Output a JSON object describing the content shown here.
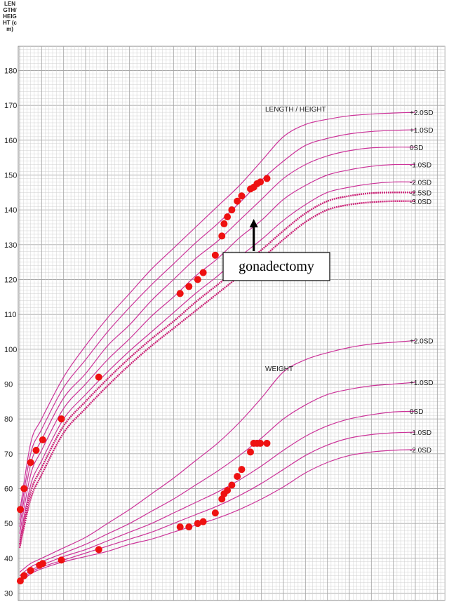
{
  "chart_data": {
    "type": "line",
    "title": "",
    "ylabel": "LENGTH/HEIGHT (cm)",
    "xlabel": "",
    "ylim": [
      30,
      190
    ],
    "yticks": [
      30,
      40,
      50,
      60,
      70,
      80,
      90,
      100,
      110,
      120,
      130,
      140,
      150,
      160,
      170,
      180
    ],
    "x_domain": [
      0,
      19
    ],
    "grid": true,
    "panels": [
      {
        "name": "LENGTH / HEIGHT",
        "series": [
          {
            "name": "+2.0SD",
            "color": "#cc3399",
            "x": [
              0,
              0.5,
              1,
              2,
              3,
              4,
              5,
              6,
              7,
              8,
              9,
              10,
              11,
              12,
              13,
              14,
              15,
              16,
              17,
              18
            ],
            "y": [
              53,
              73,
              80,
              92,
              101,
              109,
              116,
              123,
              129,
              135,
              141,
              147,
              154,
              161,
              164.5,
              166,
              167,
              167.5,
              167.8,
              168
            ]
          },
          {
            "name": "+1.0SD",
            "color": "#cc3399",
            "x": [
              0,
              0.5,
              1,
              2,
              3,
              4,
              5,
              6,
              7,
              8,
              9,
              10,
              11,
              12,
              13,
              14,
              15,
              16,
              17,
              18
            ],
            "y": [
              51,
              70,
              77,
              89,
              97,
              105,
              112,
              118.5,
              124.5,
              130.5,
              136,
              142,
              148.5,
              154,
              158.5,
              160.5,
              161.8,
              162.5,
              162.8,
              163
            ]
          },
          {
            "name": "0SD",
            "color": "#cc3399",
            "x": [
              0,
              0.5,
              1,
              2,
              3,
              4,
              5,
              6,
              7,
              8,
              9,
              10,
              11,
              12,
              13,
              14,
              15,
              16,
              17,
              18
            ],
            "y": [
              49,
              67,
              74,
              86,
              93,
              101,
              107,
              114,
              120,
              126,
              131,
              137,
              143,
              149,
              153,
              155.5,
              157,
              157.8,
              158,
              158
            ]
          },
          {
            "name": "-1.0SD",
            "color": "#cc3399",
            "x": [
              0,
              0.5,
              1,
              2,
              3,
              4,
              5,
              6,
              7,
              8,
              9,
              10,
              11,
              12,
              13,
              14,
              15,
              16,
              17,
              18
            ],
            "y": [
              47,
              64,
              71,
              83,
              90,
              97,
              103,
              109.5,
              115,
              121,
              126,
              132,
              137,
              143,
              147,
              150,
              151.5,
              152.5,
              153,
              153
            ]
          },
          {
            "name": "-2.0SD",
            "color": "#cc3399",
            "x": [
              0,
              0.5,
              1,
              2,
              3,
              4,
              5,
              6,
              7,
              8,
              9,
              10,
              11,
              12,
              13,
              14,
              15,
              16,
              17,
              18
            ],
            "y": [
              45,
              61,
              68,
              80,
              87,
              93.5,
              99.5,
              105,
              110.5,
              116,
              121,
              126.5,
              131.5,
              137,
              141.5,
              145,
              146.5,
              147.5,
              148,
              148
            ]
          },
          {
            "name": "-2.5SD",
            "color": "#cc2277",
            "x": [
              0,
              0.5,
              1,
              2,
              3,
              4,
              5,
              6,
              7,
              8,
              9,
              10,
              11,
              12,
              13,
              14,
              15,
              16,
              17,
              18
            ],
            "y": [
              44,
              59,
              66,
              78,
              85,
              91.5,
              97.5,
              103,
              108,
              113.5,
              118.5,
              123.5,
              128.5,
              134,
              139,
              142.5,
              144,
              144.8,
              145,
              145
            ]
          },
          {
            "name": "-3.0SD",
            "color": "#cc2277",
            "x": [
              0,
              0.5,
              1,
              2,
              3,
              4,
              5,
              6,
              7,
              8,
              9,
              10,
              11,
              12,
              13,
              14,
              15,
              16,
              17,
              18
            ],
            "y": [
              43,
              57,
              64,
              76,
              83,
              89.5,
              95.5,
              101,
              106,
              111,
              116,
              121,
              126,
              131.5,
              136.5,
              140,
              141.5,
              142.2,
              142.5,
              142.5
            ]
          }
        ],
        "patient_points": {
          "x": [
            0.03,
            0.2,
            0.5,
            0.75,
            1.05,
            1.9,
            3.6,
            7.3,
            7.7,
            8.1,
            8.35,
            8.9,
            9.2,
            9.3,
            9.45,
            9.65,
            9.9,
            10.1,
            10.5,
            10.65,
            10.8,
            10.95,
            11.25
          ],
          "y": [
            54,
            60,
            67.5,
            71,
            74,
            80,
            92,
            116,
            118,
            120,
            122,
            127,
            132.5,
            136,
            138,
            140,
            142.5,
            144,
            146,
            146.5,
            147.5,
            148,
            149
          ]
        }
      },
      {
        "name": "WEIGHT",
        "series": [
          {
            "name": "+2.0SD",
            "color": "#cc3399",
            "x": [
              0,
              0.5,
              1,
              2,
              3,
              4,
              5,
              6,
              7,
              8,
              9,
              10,
              11,
              12,
              13,
              14,
              15,
              16,
              17,
              18
            ],
            "y": [
              36,
              38.5,
              40,
              43,
              46,
              50,
              54,
              58.5,
              63,
              68,
              73,
              79,
              86,
              93.5,
              97,
              99,
              100.5,
              101.5,
              102,
              102.5
            ]
          },
          {
            "name": "+1.0SD",
            "color": "#cc3399",
            "x": [
              0,
              0.5,
              1,
              2,
              3,
              4,
              5,
              6,
              7,
              8,
              9,
              10,
              11,
              12,
              13,
              14,
              15,
              16,
              17,
              18
            ],
            "y": [
              35,
              37.5,
              39,
              41.5,
              44,
              47,
              50,
              53.5,
              57,
              61,
              65,
              69.5,
              74.5,
              80,
              84,
              87,
              88.5,
              89.5,
              90,
              90.5
            ]
          },
          {
            "name": "0SD",
            "color": "#cc3399",
            "x": [
              0,
              0.5,
              1,
              2,
              3,
              4,
              5,
              6,
              7,
              8,
              9,
              10,
              11,
              12,
              13,
              14,
              15,
              16,
              17,
              18
            ],
            "y": [
              34,
              36.5,
              38,
              40.5,
              42.5,
              45,
              47.5,
              50,
              53,
              56,
              59,
              62.5,
              66.5,
              71,
              75,
              78,
              80,
              81.2,
              82,
              82.2
            ]
          },
          {
            "name": "-1.0SD",
            "color": "#cc3399",
            "x": [
              0,
              0.5,
              1,
              2,
              3,
              4,
              5,
              6,
              7,
              8,
              9,
              10,
              11,
              12,
              13,
              14,
              15,
              16,
              17,
              18
            ],
            "y": [
              33.5,
              36,
              37.5,
              39.5,
              41.5,
              43.5,
              45.5,
              47.5,
              50,
              52.5,
              55,
              58,
              61.5,
              65.5,
              69.5,
              72.5,
              74.5,
              75.5,
              76,
              76.2
            ]
          },
          {
            "name": "-2.0SD",
            "color": "#cc3399",
            "x": [
              0,
              0.5,
              1,
              2,
              3,
              4,
              5,
              6,
              7,
              8,
              9,
              10,
              11,
              12,
              13,
              14,
              15,
              16,
              17,
              18
            ],
            "y": [
              33,
              35.5,
              37,
              39,
              40.5,
              42,
              44,
              45.5,
              47.5,
              49.5,
              51.5,
              54,
              57,
              60.5,
              64.5,
              67.5,
              69.5,
              70.5,
              71,
              71.2
            ]
          }
        ],
        "patient_points": {
          "x": [
            0.03,
            0.2,
            0.5,
            0.9,
            1.05,
            1.9,
            3.6,
            7.3,
            7.7,
            8.1,
            8.35,
            8.9,
            9.2,
            9.3,
            9.45,
            9.65,
            9.9,
            10.1,
            10.5,
            10.65,
            10.8,
            10.95,
            11.25
          ],
          "y": [
            33.5,
            35,
            36.5,
            38,
            38.5,
            39.5,
            42.5,
            49,
            49,
            50,
            50.5,
            53,
            57,
            58.5,
            59.5,
            61,
            63.5,
            65.5,
            70.5,
            73,
            73,
            73,
            73
          ]
        }
      }
    ],
    "annotations": [
      {
        "text": "gonadectomy",
        "arrow_to": {
          "x": 10.65,
          "y": 138
        }
      }
    ]
  },
  "colors": {
    "curve": "#cc3399",
    "curve_dark": "#cc2277",
    "point": "#ee1111",
    "grid_minor": "#d0d0d0",
    "grid_major": "#a9a9a9"
  }
}
